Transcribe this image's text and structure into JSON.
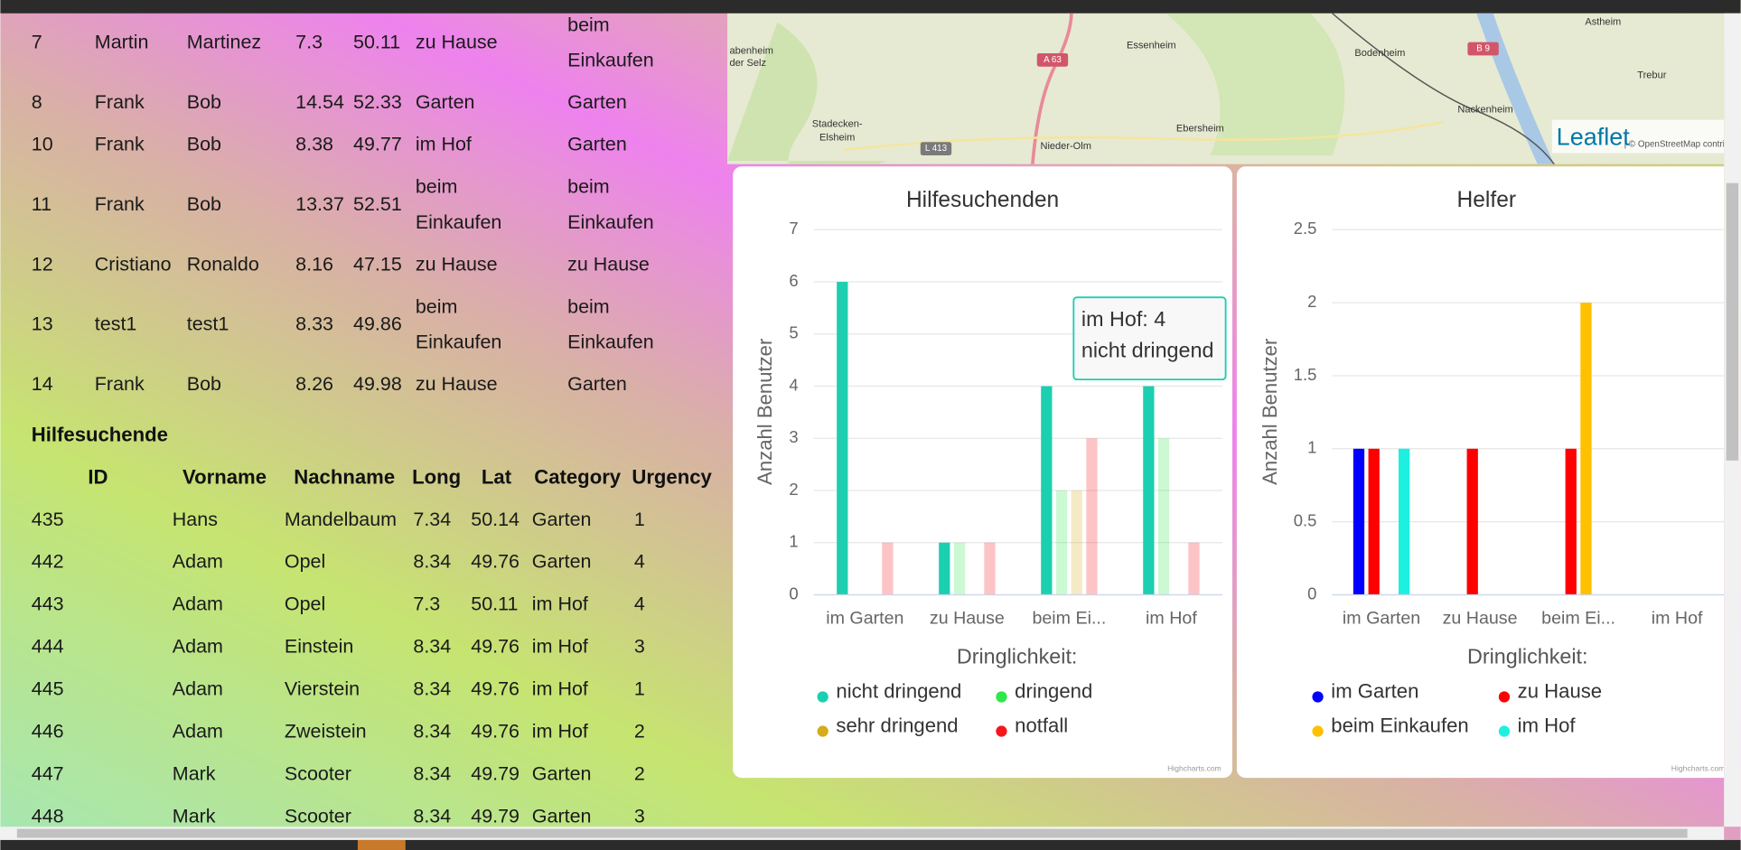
{
  "helper_table": {
    "rows": [
      [
        "7",
        "Martin",
        "Martinez",
        "7.3",
        "50.11",
        "zu Hause",
        "beim Einkaufen"
      ],
      [
        "8",
        "Frank",
        "Bob",
        "14.54",
        "52.33",
        "Garten",
        "Garten"
      ],
      [
        "10",
        "Frank",
        "Bob",
        "8.38",
        "49.77",
        "im Hof",
        "Garten"
      ],
      [
        "11",
        "Frank",
        "Bob",
        "13.37",
        "52.51",
        "beim Einkaufen",
        "beim Einkaufen"
      ],
      [
        "12",
        "Cristiano",
        "Ronaldo",
        "8.16",
        "47.15",
        "zu Hause",
        "zu Hause"
      ],
      [
        "13",
        "test1",
        "test1",
        "8.33",
        "49.86",
        "beim Einkaufen",
        "beim Einkaufen"
      ],
      [
        "14",
        "Frank",
        "Bob",
        "8.26",
        "49.98",
        "zu Hause",
        "Garten"
      ]
    ]
  },
  "seeker_table": {
    "title": "Hilfesuchende",
    "columns": [
      "ID",
      "Vorname",
      "Nachname",
      "Long",
      "Lat",
      "Category",
      "Urgency"
    ],
    "rows": [
      [
        "435",
        "Hans",
        "Mandelbaum",
        "7.34",
        "50.14",
        "Garten",
        "1"
      ],
      [
        "442",
        "Adam",
        "Opel",
        "8.34",
        "49.76",
        "Garten",
        "4"
      ],
      [
        "443",
        "Adam",
        "Opel",
        "7.3",
        "50.11",
        "im Hof",
        "4"
      ],
      [
        "444",
        "Adam",
        "Einstein",
        "8.34",
        "49.76",
        "im Hof",
        "3"
      ],
      [
        "445",
        "Adam",
        "Vierstein",
        "8.34",
        "49.76",
        "im Hof",
        "1"
      ],
      [
        "446",
        "Adam",
        "Zweistein",
        "8.34",
        "49.76",
        "im Hof",
        "2"
      ],
      [
        "447",
        "Mark",
        "Scooter",
        "8.34",
        "49.79",
        "Garten",
        "2"
      ],
      [
        "448",
        "Mark",
        "Scooter",
        "8.34",
        "49.79",
        "Garten",
        "3"
      ]
    ]
  },
  "map": {
    "places": [
      "Essenheim",
      "Bodenheim",
      "Astheim",
      "Trebur",
      "Nackenheim",
      "Stadecken-",
      "Elsheim",
      "Nieder-Olm",
      "Ebersheim",
      "abenheim",
      "der Selz"
    ],
    "roads": [
      "A 63",
      "B 9",
      "L 413"
    ],
    "attribution": "Leaflet",
    "copyright": "| © OpenStreetMap contribu"
  },
  "charts": [
    {
      "type": "bar",
      "title": "Hilfesuchenden",
      "y_axis_title": "Anzahl Benutzer",
      "categories": [
        "im Garten",
        "zu Hause",
        "beim Ei...",
        "im Hof"
      ],
      "series": [
        {
          "name": "nicht dringend",
          "color": "#1ccfb0",
          "values": [
            6,
            1,
            4,
            4
          ]
        },
        {
          "name": "dringend",
          "color": "#2ee84a",
          "values": [
            0,
            1,
            2,
            3
          ]
        },
        {
          "name": "sehr dringend",
          "color": "#d4ac1c",
          "values": [
            0,
            0,
            2,
            0
          ]
        },
        {
          "name": "notfall",
          "color": "#f7151b",
          "values": [
            1,
            1,
            3,
            1
          ]
        }
      ],
      "ylim": [
        0,
        7
      ],
      "yticks": [
        0,
        1,
        2,
        3,
        4,
        5,
        6,
        7
      ],
      "grid": true,
      "legend_title": "Dringlichkeit:",
      "credits": "Highcharts.com",
      "tooltip": {
        "lines": [
          "im Hof: 4",
          "nicht dringend"
        ]
      }
    },
    {
      "type": "bar",
      "title": "Helfer",
      "y_axis_title": "Anzahl Benutzer",
      "categories": [
        "im Garten",
        "zu Hause",
        "beim Ei...",
        "im Hof"
      ],
      "series": [
        {
          "name": "im Garten",
          "color": "#0000ff",
          "values": [
            1,
            0,
            0,
            0
          ]
        },
        {
          "name": "zu Hause",
          "color": "#ff0000",
          "values": [
            1,
            1,
            1,
            0
          ]
        },
        {
          "name": "beim Einkaufen",
          "color": "#ffc000",
          "values": [
            0,
            0,
            2,
            0
          ]
        },
        {
          "name": "im Hof",
          "color": "#1ef0e0",
          "values": [
            1,
            0,
            0,
            0
          ]
        }
      ],
      "ylim": [
        0,
        2.5
      ],
      "yticks": [
        0,
        0.5,
        1,
        1.5,
        2,
        2.5
      ],
      "grid": true,
      "legend_title": "Dringlichkeit:",
      "credits": "Highcharts.com"
    }
  ]
}
